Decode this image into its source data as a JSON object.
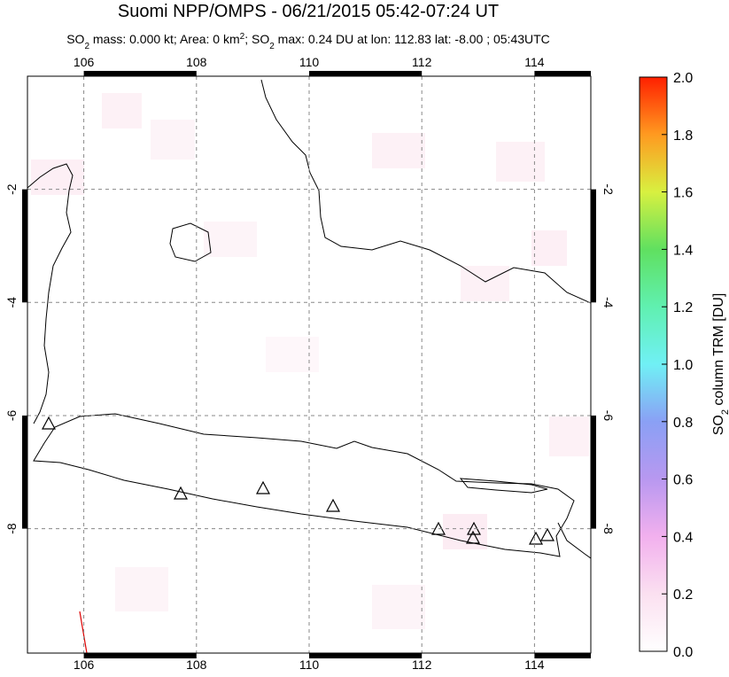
{
  "title": "Suomi NPP/OMPS - 06/21/2015 05:42-07:24 UT",
  "subtitle": [
    "SO",
    "2",
    " mass: 0.000 kt; Area: 0 km",
    "2",
    "; SO",
    "2",
    " max: 0.24 DU at lon: 112.83 lat: -8.00 ; 05:43UTC"
  ],
  "map": {
    "lonlim": [
      105,
      115
    ],
    "latlim": [
      -10.2,
      0
    ],
    "lonticks": [
      106,
      108,
      110,
      112,
      114
    ],
    "latticks": [
      -2,
      -4,
      -6,
      -8
    ]
  },
  "colorbar": {
    "label": [
      "SO",
      "2",
      " column TRM [DU]"
    ],
    "lim": [
      0,
      2
    ],
    "ticks": [
      {
        "value": 0,
        "label": "0.0"
      },
      {
        "value": 0.2,
        "label": "0.2"
      },
      {
        "value": 0.4,
        "label": "0.4"
      },
      {
        "value": 0.6,
        "label": "0.6"
      },
      {
        "value": 0.8,
        "label": "0.8"
      },
      {
        "value": 1.0,
        "label": "1.0"
      },
      {
        "value": 1.2,
        "label": "1.2"
      },
      {
        "value": 1.4,
        "label": "1.4"
      },
      {
        "value": 1.6,
        "label": "1.6"
      },
      {
        "value": 1.8,
        "label": "1.8"
      },
      {
        "value": 2.0,
        "label": "2.0"
      }
    ]
  }
}
